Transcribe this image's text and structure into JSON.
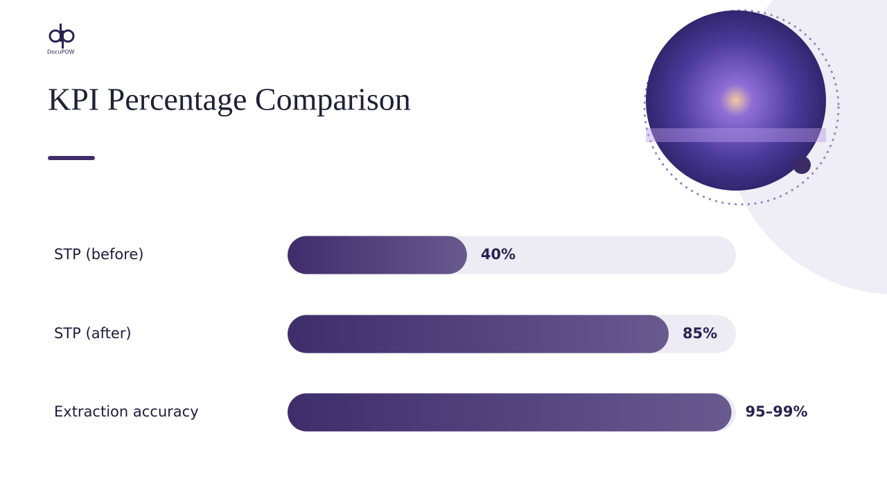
{
  "brand": "DocuPOW",
  "chart_data": {
    "type": "hbar",
    "title": "KPI Percentage Comparison",
    "categories": [
      "STP (before)",
      "STP (after)",
      "Extraction accuracy"
    ],
    "values": [
      40,
      85,
      99
    ],
    "value_labels": [
      "40%",
      "85%",
      "95–99%"
    ],
    "color": "#3f2d6b",
    "xlim": [
      0,
      100
    ]
  }
}
